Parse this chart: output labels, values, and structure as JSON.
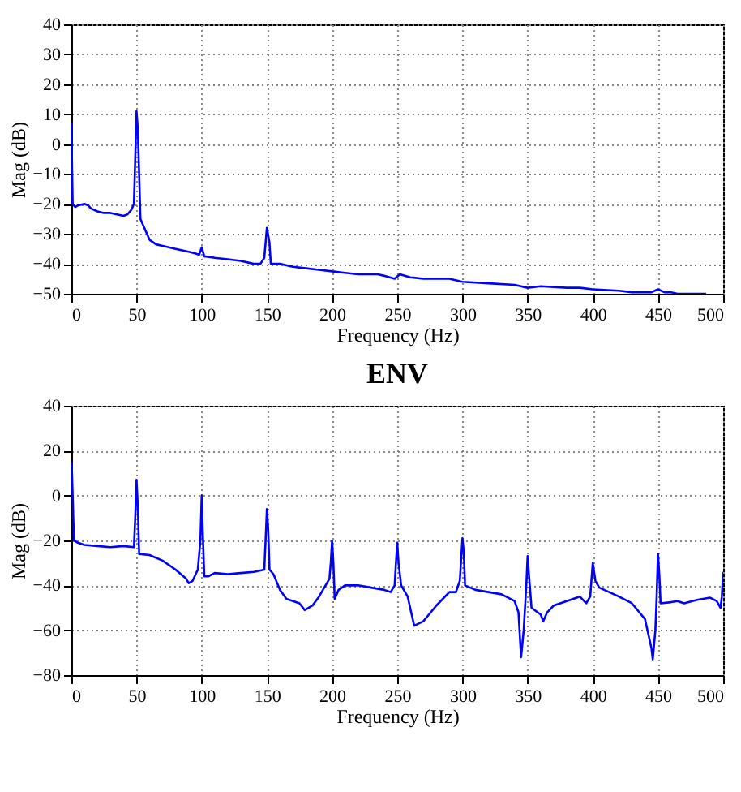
{
  "chart_data": [
    {
      "type": "line",
      "xlabel": "Frequency (Hz)",
      "ylabel": "Mag (dB)",
      "color": "#0000ff",
      "grid": true,
      "line_style": "solid",
      "xlim": [
        0,
        500
      ],
      "xticks": [
        0,
        50,
        100,
        150,
        200,
        250,
        300,
        350,
        400,
        450,
        500
      ],
      "ylim": [
        -50,
        40
      ],
      "yticks": [
        -50,
        -40,
        -30,
        -20,
        -10,
        0,
        10,
        20,
        30,
        40
      ],
      "x": [
        0,
        1,
        3,
        5,
        10,
        13,
        15,
        20,
        25,
        30,
        35,
        40,
        43,
        46,
        48,
        49,
        50,
        51,
        52,
        53,
        55,
        60,
        65,
        70,
        80,
        90,
        95,
        98,
        100,
        102,
        110,
        120,
        130,
        140,
        145,
        148,
        150,
        152,
        153,
        160,
        170,
        180,
        190,
        200,
        210,
        220,
        235,
        240,
        248,
        252,
        260,
        270,
        280,
        290,
        300,
        320,
        340,
        350,
        360,
        380,
        390,
        400,
        420,
        430,
        445,
        450,
        455,
        460,
        465,
        487
      ],
      "values": [
        7,
        -20,
        -21,
        -20.5,
        -20,
        -20.5,
        -21.5,
        -22.5,
        -23,
        -23,
        -23.5,
        -24,
        -23.5,
        -22,
        -20,
        -5,
        11,
        5,
        -10,
        -25,
        -27,
        -32,
        -33.5,
        -34,
        -35,
        -36,
        -36.5,
        -37,
        -34.5,
        -37.5,
        -38,
        -38.5,
        -39,
        -40,
        -40,
        -38,
        -28,
        -33,
        -40,
        -40,
        -41,
        -41.5,
        -42,
        -42.5,
        -43,
        -43.5,
        -43.5,
        -44,
        -45,
        -43.5,
        -44.5,
        -45,
        -45,
        -45,
        -46,
        -46.5,
        -47,
        -48,
        -47.5,
        -48,
        -48,
        -48.5,
        -49,
        -49.5,
        -49.5,
        -48.5,
        -49.5,
        -49.5,
        -50,
        -50
      ]
    },
    {
      "type": "line",
      "title": "ENV",
      "xlabel": "Frequency (Hz)",
      "ylabel": "Mag (dB)",
      "color": "#0000ff",
      "grid": true,
      "line_style": "solid",
      "xlim": [
        0,
        500
      ],
      "xticks": [
        0,
        50,
        100,
        150,
        200,
        250,
        300,
        350,
        400,
        450,
        500
      ],
      "ylim": [
        -80,
        40
      ],
      "yticks": [
        -80,
        -60,
        -40,
        -20,
        0,
        20,
        40
      ],
      "x": [
        0,
        0.5,
        2,
        5,
        10,
        20,
        30,
        40,
        48,
        49,
        50,
        51,
        52,
        60,
        70,
        80,
        88,
        90,
        93,
        97,
        99,
        100,
        101,
        102,
        105,
        110,
        120,
        130,
        140,
        148,
        149,
        150,
        151,
        152,
        155,
        160,
        165,
        175,
        179,
        185,
        190,
        195,
        198,
        199,
        200,
        201,
        202,
        205,
        210,
        220,
        230,
        240,
        245,
        248,
        249,
        250,
        251,
        253,
        258,
        263,
        270,
        280,
        290,
        295,
        298,
        300,
        301,
        302,
        310,
        330,
        340,
        343,
        345,
        347,
        349,
        350,
        351,
        353,
        360,
        362,
        365,
        370,
        380,
        390,
        395,
        398,
        400,
        402,
        405,
        420,
        430,
        440,
        445,
        446,
        448,
        449,
        450,
        451,
        452,
        460,
        465,
        470,
        480,
        490,
        495,
        498,
        499,
        500
      ],
      "values": [
        15,
        10,
        -20,
        -21,
        -22,
        -22.5,
        -23,
        -22.5,
        -23,
        -10,
        7,
        -5,
        -26,
        -26.5,
        -29,
        -33,
        -37,
        -39,
        -38,
        -33,
        -20,
        0,
        -20,
        -36,
        -36,
        -34.5,
        -35,
        -34.5,
        -34,
        -33,
        -20,
        -6,
        -15,
        -33,
        -35,
        -42,
        -46,
        -48,
        -51,
        -49,
        -45,
        -40,
        -37,
        -30,
        -20,
        -30,
        -46,
        -42,
        -40,
        -40,
        -41,
        -42,
        -43,
        -40,
        -30,
        -21,
        -30,
        -40,
        -45,
        -58,
        -56,
        -49,
        -43,
        -43,
        -38,
        -19,
        -25,
        -40,
        -42,
        -44,
        -47,
        -52,
        -72,
        -60,
        -40,
        -27,
        -35,
        -50,
        -53,
        -56,
        -52,
        -49,
        -47,
        -45,
        -48,
        -45,
        -30,
        -38,
        -41,
        -45,
        -48,
        -55,
        -68,
        -73,
        -60,
        -45,
        -26,
        -35,
        -48,
        -47.5,
        -47,
        -48,
        -46.5,
        -45.5,
        -47,
        -50,
        -45,
        -34
      ]
    }
  ]
}
